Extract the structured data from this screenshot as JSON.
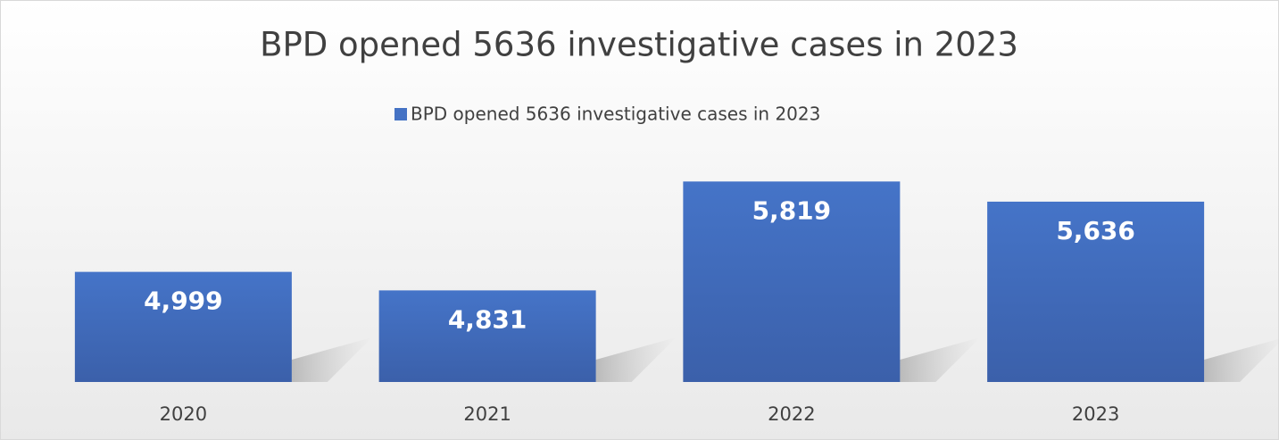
{
  "chart_data": {
    "type": "bar",
    "title": "BPD opened 5636 investigative cases in 2023",
    "categories": [
      "2020",
      "2021",
      "2022",
      "2023"
    ],
    "series": [
      {
        "name": "BPD opened 5636 investigative cases in 2023",
        "color": "#4472c4",
        "values": [
          4999,
          4831,
          5819,
          5636
        ],
        "value_labels": [
          "4,999",
          "4,831",
          "5,819",
          "5,636"
        ]
      }
    ],
    "ylim": [
      4000,
      6000
    ]
  }
}
